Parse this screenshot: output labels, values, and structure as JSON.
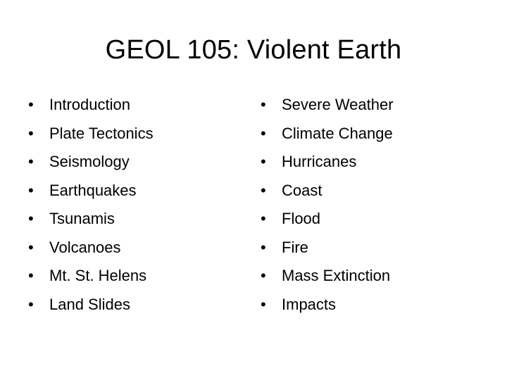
{
  "slide": {
    "title": "GEOL 105: Violent Earth",
    "bullet_symbol": "•",
    "left_column": [
      "Introduction",
      "Plate Tectonics",
      "Seismology",
      "Earthquakes",
      "Tsunamis",
      "Volcanoes",
      "Mt. St. Helens",
      "Land Slides"
    ],
    "right_column": [
      "Severe Weather",
      "Climate Change",
      "Hurricanes",
      "Coast",
      "Flood",
      "Fire",
      "Mass Extinction",
      "Impacts"
    ]
  }
}
